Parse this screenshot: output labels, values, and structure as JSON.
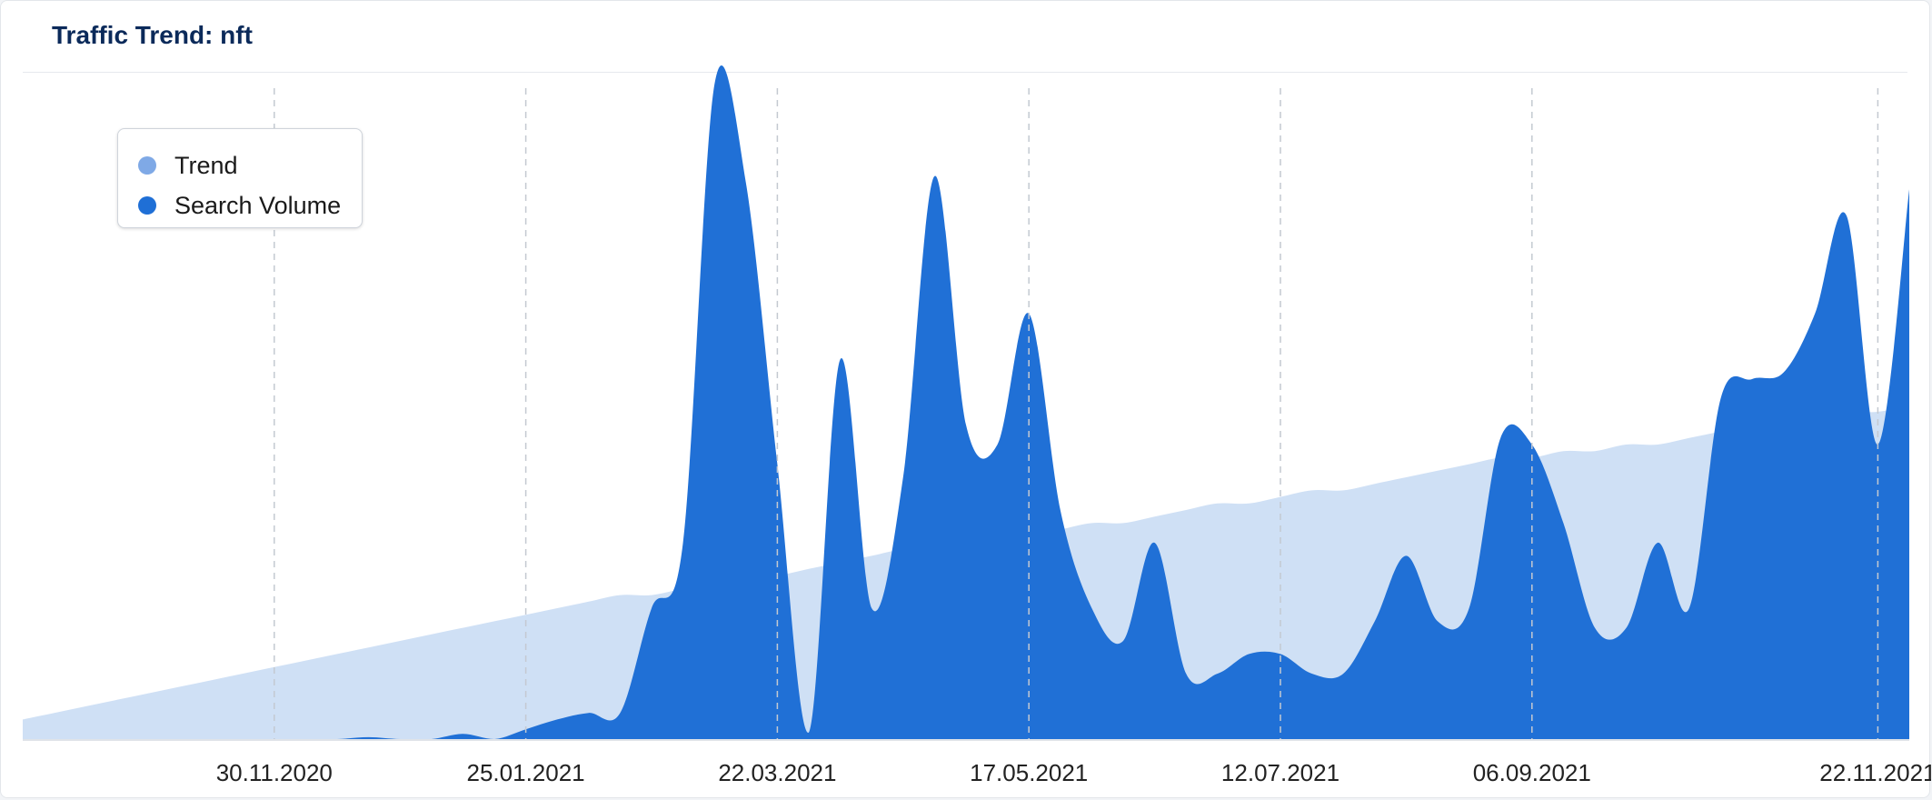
{
  "header": {
    "title": "Traffic Trend: nft"
  },
  "colors": {
    "trend": "#cfe0f5",
    "search_volume": "#2070d6",
    "trend_legend": "#7fa9e6",
    "search_legend": "#1f6fd6"
  },
  "legend": {
    "items": [
      {
        "label": "Trend",
        "color": "#7fa9e6"
      },
      {
        "label": "Search Volume",
        "color": "#1f6fd6"
      }
    ]
  },
  "chart_data": {
    "type": "area",
    "title": "Traffic Trend: nft",
    "x_tick_labels": [
      "30.11.2020",
      "25.01.2021",
      "22.03.2021",
      "17.05.2021",
      "12.07.2021",
      "06.09.2021",
      "22.11.2021"
    ],
    "x": [
      "05.10.2020",
      "12.10.2020",
      "19.10.2020",
      "26.10.2020",
      "02.11.2020",
      "09.11.2020",
      "16.11.2020",
      "23.11.2020",
      "30.11.2020",
      "07.12.2020",
      "14.12.2020",
      "21.12.2020",
      "28.12.2020",
      "04.01.2021",
      "11.01.2021",
      "18.01.2021",
      "25.01.2021",
      "01.02.2021",
      "08.02.2021",
      "15.02.2021",
      "22.02.2021",
      "01.03.2021",
      "08.03.2021",
      "15.03.2021",
      "22.03.2021",
      "29.03.2021",
      "05.04.2021",
      "12.04.2021",
      "19.04.2021",
      "26.04.2021",
      "03.05.2021",
      "10.05.2021",
      "17.05.2021",
      "24.05.2021",
      "31.05.2021",
      "07.06.2021",
      "14.06.2021",
      "21.06.2021",
      "28.06.2021",
      "05.07.2021",
      "12.07.2021",
      "19.07.2021",
      "26.07.2021",
      "02.08.2021",
      "09.08.2021",
      "16.08.2021",
      "23.08.2021",
      "30.08.2021",
      "06.09.2021",
      "13.09.2021",
      "20.09.2021",
      "27.09.2021",
      "04.10.2021",
      "11.10.2021",
      "18.10.2021",
      "25.10.2021",
      "01.11.2021",
      "08.11.2021",
      "15.11.2021",
      "22.11.2021",
      "29.11.2021"
    ],
    "series": [
      {
        "name": "Trend",
        "values": [
          3,
          4,
          5,
          6,
          7,
          8,
          9,
          10,
          11,
          12,
          13,
          14,
          15,
          16,
          17,
          18,
          19,
          20,
          21,
          22,
          22,
          23,
          24,
          25,
          25,
          26,
          27,
          28,
          29,
          29,
          30,
          31,
          31,
          32,
          33,
          33,
          34,
          35,
          36,
          36,
          37,
          38,
          38,
          39,
          40,
          41,
          42,
          43,
          43,
          44,
          44,
          45,
          45,
          46,
          47,
          48,
          48,
          49,
          50,
          50,
          51
        ]
      },
      {
        "name": "Search Volume",
        "values": [
          0,
          0,
          0,
          0,
          0,
          0,
          0,
          0,
          0,
          0,
          0,
          0.3,
          0,
          0,
          0.8,
          0,
          1.5,
          3,
          4,
          4,
          20,
          30,
          100,
          85,
          42,
          1,
          58,
          20,
          40,
          86,
          48,
          45,
          65,
          35,
          20,
          15,
          30,
          10,
          10,
          13,
          13,
          10,
          10,
          18,
          28,
          18,
          20,
          46,
          45,
          33,
          17,
          17,
          30,
          20,
          52,
          55,
          56,
          65,
          80,
          45,
          84
        ]
      }
    ],
    "ylim": [
      0,
      100
    ],
    "grid": "vertical dashed lines at labeled dates",
    "legend_position": "top-left"
  }
}
